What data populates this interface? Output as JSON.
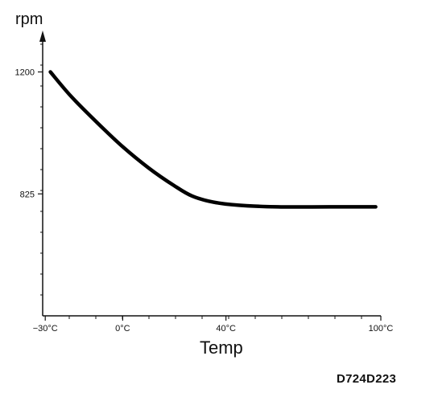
{
  "chart_data": {
    "type": "line",
    "ylabel": "rpm",
    "xlabel": "Temp",
    "x_ticks": [
      {
        "value": -30,
        "label": "−30°C"
      },
      {
        "value": 0,
        "label": "0°C"
      },
      {
        "value": 40,
        "label": "40°C"
      },
      {
        "value": 100,
        "label": "100°C"
      }
    ],
    "y_ticks": [
      {
        "value": 825,
        "label": "825"
      },
      {
        "value": 1200,
        "label": "1200"
      }
    ],
    "xlim": [
      -31,
      100
    ],
    "ylim": [
      450,
      1310
    ],
    "series": [
      {
        "x": [
          -28,
          -20,
          -10,
          0,
          10,
          20,
          27,
          35,
          45,
          60,
          80,
          98
        ],
        "y": [
          1200,
          1125,
          1045,
          970,
          905,
          850,
          818,
          800,
          790,
          785,
          785,
          785
        ]
      }
    ],
    "figure_id": "D724D223"
  }
}
